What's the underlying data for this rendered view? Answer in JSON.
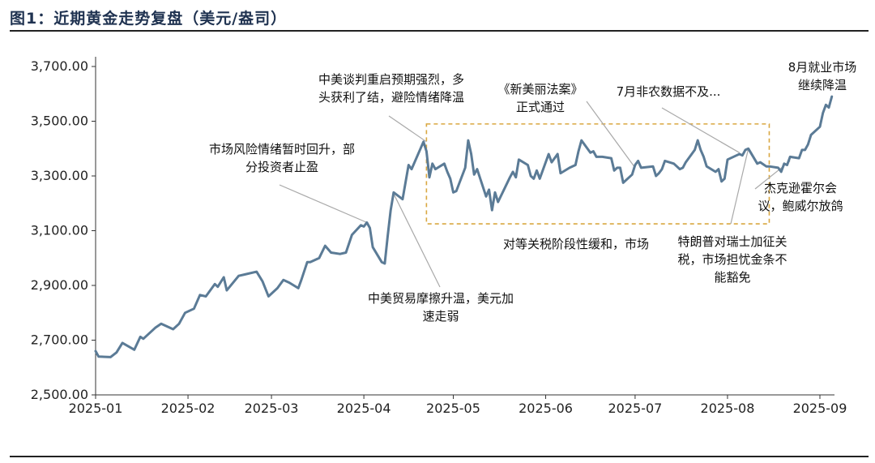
{
  "header": {
    "title": "图1：近期黄金走势复盘（美元/盎司）"
  },
  "colors": {
    "line": "#5b7b96",
    "box": "#d9a741",
    "leader": "#a9a9a9",
    "axis": "#333333"
  },
  "chart_data": {
    "type": "line",
    "title": "图1：近期黄金走势复盘（美元/盎司）",
    "unit": "美元/盎司",
    "xlabel": "",
    "ylabel": "",
    "ylim": [
      2500,
      3800
    ],
    "y_ticks": [
      "2,500.00",
      "2,700.00",
      "2,900.00",
      "3,100.00",
      "3,300.00",
      "3,500.00",
      "3,700.00"
    ],
    "x_ticks": [
      "2025-01",
      "2025-02",
      "2025-03",
      "2025-04",
      "2025-05",
      "2025-06",
      "2025-07",
      "2025-08",
      "2025-09"
    ],
    "series": [
      {
        "values": [
          [
            "2025-01-01",
            2660
          ],
          [
            "2025-01-02",
            2640
          ],
          [
            "2025-01-06",
            2638
          ],
          [
            "2025-01-08",
            2655
          ],
          [
            "2025-01-10",
            2690
          ],
          [
            "2025-01-14",
            2665
          ],
          [
            "2025-01-16",
            2712
          ],
          [
            "2025-01-17",
            2705
          ],
          [
            "2025-01-21",
            2745
          ],
          [
            "2025-01-23",
            2760
          ],
          [
            "2025-01-27",
            2740
          ],
          [
            "2025-01-29",
            2760
          ],
          [
            "2025-01-31",
            2800
          ],
          [
            "2025-02-03",
            2815
          ],
          [
            "2025-02-05",
            2865
          ],
          [
            "2025-02-07",
            2860
          ],
          [
            "2025-02-10",
            2905
          ],
          [
            "2025-02-11",
            2895
          ],
          [
            "2025-02-13",
            2930
          ],
          [
            "2025-02-14",
            2882
          ],
          [
            "2025-02-18",
            2935
          ],
          [
            "2025-02-20",
            2940
          ],
          [
            "2025-02-24",
            2950
          ],
          [
            "2025-02-26",
            2915
          ],
          [
            "2025-02-28",
            2860
          ],
          [
            "2025-03-03",
            2890
          ],
          [
            "2025-03-05",
            2920
          ],
          [
            "2025-03-07",
            2910
          ],
          [
            "2025-03-10",
            2890
          ],
          [
            "2025-03-11",
            2920
          ],
          [
            "2025-03-13",
            2985
          ],
          [
            "2025-03-14",
            2985
          ],
          [
            "2025-03-17",
            3000
          ],
          [
            "2025-03-19",
            3045
          ],
          [
            "2025-03-21",
            3020
          ],
          [
            "2025-03-24",
            3015
          ],
          [
            "2025-03-26",
            3020
          ],
          [
            "2025-03-28",
            3085
          ],
          [
            "2025-03-31",
            3120
          ],
          [
            "2025-04-01",
            3115
          ],
          [
            "2025-04-02",
            3130
          ],
          [
            "2025-04-03",
            3110
          ],
          [
            "2025-04-04",
            3040
          ],
          [
            "2025-04-07",
            2985
          ],
          [
            "2025-04-08",
            2980
          ],
          [
            "2025-04-09",
            3080
          ],
          [
            "2025-04-10",
            3175
          ],
          [
            "2025-04-11",
            3240
          ],
          [
            "2025-04-14",
            3215
          ],
          [
            "2025-04-16",
            3340
          ],
          [
            "2025-04-17",
            3325
          ],
          [
            "2025-04-21",
            3425
          ],
          [
            "2025-04-22",
            3390
          ],
          [
            "2025-04-23",
            3295
          ],
          [
            "2025-04-24",
            3345
          ],
          [
            "2025-04-25",
            3325
          ],
          [
            "2025-04-28",
            3345
          ],
          [
            "2025-04-29",
            3315
          ],
          [
            "2025-04-30",
            3290
          ],
          [
            "2025-05-01",
            3240
          ],
          [
            "2025-05-02",
            3245
          ],
          [
            "2025-05-05",
            3330
          ],
          [
            "2025-05-06",
            3430
          ],
          [
            "2025-05-07",
            3380
          ],
          [
            "2025-05-08",
            3305
          ],
          [
            "2025-05-09",
            3325
          ],
          [
            "2025-05-12",
            3225
          ],
          [
            "2025-05-13",
            3250
          ],
          [
            "2025-05-14",
            3175
          ],
          [
            "2025-05-15",
            3240
          ],
          [
            "2025-05-16",
            3205
          ],
          [
            "2025-05-20",
            3295
          ],
          [
            "2025-05-21",
            3315
          ],
          [
            "2025-05-22",
            3295
          ],
          [
            "2025-05-23",
            3360
          ],
          [
            "2025-05-26",
            3340
          ],
          [
            "2025-05-27",
            3300
          ],
          [
            "2025-05-28",
            3290
          ],
          [
            "2025-05-29",
            3320
          ],
          [
            "2025-05-30",
            3290
          ],
          [
            "2025-06-02",
            3380
          ],
          [
            "2025-06-03",
            3350
          ],
          [
            "2025-06-05",
            3380
          ],
          [
            "2025-06-06",
            3310
          ],
          [
            "2025-06-09",
            3330
          ],
          [
            "2025-06-11",
            3340
          ],
          [
            "2025-06-12",
            3390
          ],
          [
            "2025-06-13",
            3430
          ],
          [
            "2025-06-16",
            3385
          ],
          [
            "2025-06-17",
            3390
          ],
          [
            "2025-06-18",
            3370
          ],
          [
            "2025-06-20",
            3370
          ],
          [
            "2025-06-23",
            3365
          ],
          [
            "2025-06-24",
            3320
          ],
          [
            "2025-06-25",
            3330
          ],
          [
            "2025-06-26",
            3330
          ],
          [
            "2025-06-27",
            3275
          ],
          [
            "2025-06-30",
            3305
          ],
          [
            "2025-07-01",
            3340
          ],
          [
            "2025-07-02",
            3355
          ],
          [
            "2025-07-03",
            3330
          ],
          [
            "2025-07-07",
            3335
          ],
          [
            "2025-07-08",
            3300
          ],
          [
            "2025-07-09",
            3310
          ],
          [
            "2025-07-10",
            3325
          ],
          [
            "2025-07-11",
            3355
          ],
          [
            "2025-07-14",
            3345
          ],
          [
            "2025-07-16",
            3325
          ],
          [
            "2025-07-17",
            3330
          ],
          [
            "2025-07-18",
            3350
          ],
          [
            "2025-07-21",
            3395
          ],
          [
            "2025-07-22",
            3430
          ],
          [
            "2025-07-23",
            3395
          ],
          [
            "2025-07-24",
            3370
          ],
          [
            "2025-07-25",
            3335
          ],
          [
            "2025-07-28",
            3315
          ],
          [
            "2025-07-29",
            3325
          ],
          [
            "2025-07-30",
            3280
          ],
          [
            "2025-07-31",
            3290
          ],
          [
            "2025-08-01",
            3360
          ],
          [
            "2025-08-04",
            3375
          ],
          [
            "2025-08-05",
            3380
          ],
          [
            "2025-08-06",
            3375
          ],
          [
            "2025-08-07",
            3395
          ],
          [
            "2025-08-08",
            3400
          ],
          [
            "2025-08-11",
            3345
          ],
          [
            "2025-08-12",
            3350
          ],
          [
            "2025-08-14",
            3335
          ],
          [
            "2025-08-15",
            3335
          ],
          [
            "2025-08-18",
            3330
          ],
          [
            "2025-08-19",
            3315
          ],
          [
            "2025-08-20",
            3345
          ],
          [
            "2025-08-21",
            3340
          ],
          [
            "2025-08-22",
            3370
          ],
          [
            "2025-08-25",
            3365
          ],
          [
            "2025-08-26",
            3395
          ],
          [
            "2025-08-27",
            3395
          ],
          [
            "2025-08-28",
            3415
          ],
          [
            "2025-08-29",
            3450
          ],
          [
            "2025-09-01",
            3480
          ],
          [
            "2025-09-02",
            3530
          ],
          [
            "2025-09-03",
            3560
          ],
          [
            "2025-09-04",
            3550
          ],
          [
            "2025-09-05",
            3590
          ]
        ]
      }
    ],
    "highlight_box": {
      "x_range": [
        "2025-04-22",
        "2025-08-15"
      ],
      "y_range": [
        3125,
        3490
      ]
    },
    "annotations": [
      {
        "text_lines": [
          "市场风险情绪暂时回升，部",
          "分投资者止盈"
        ],
        "target": [
          "2025-04-02",
          3130
        ]
      },
      {
        "text_lines": [
          "中美谈判重启预期强烈，多",
          "头获利了结，避险情绪降温"
        ],
        "target": [
          "2025-04-22",
          3425
        ]
      },
      {
        "text_lines": [
          "《新美丽法案》",
          "正式通过"
        ],
        "target": [
          "2025-07-01",
          3330
        ]
      },
      {
        "text_lines": [
          "7月非农数据不及..."
        ],
        "target": [
          "2025-08-05",
          3385
        ]
      },
      {
        "text_lines": [
          "8月就业市场",
          "继续降温"
        ],
        "target": null
      },
      {
        "text_lines": [
          "杰克逊霍尔会",
          "议，鲍威尔放鸽"
        ],
        "target": [
          "2025-08-22",
          3355
        ]
      },
      {
        "text_lines": [
          "中美贸易摩擦升温，美元加",
          "速走弱"
        ],
        "target": [
          "2025-04-11",
          3235
        ]
      },
      {
        "text_lines": [
          "对等关税阶段性缓和，市场"
        ],
        "target": null
      },
      {
        "text_lines": [
          "特朗普对瑞士加征关",
          "税，市场担忧金条不",
          "能豁免"
        ],
        "target": [
          "2025-08-08",
          3400
        ]
      }
    ]
  }
}
